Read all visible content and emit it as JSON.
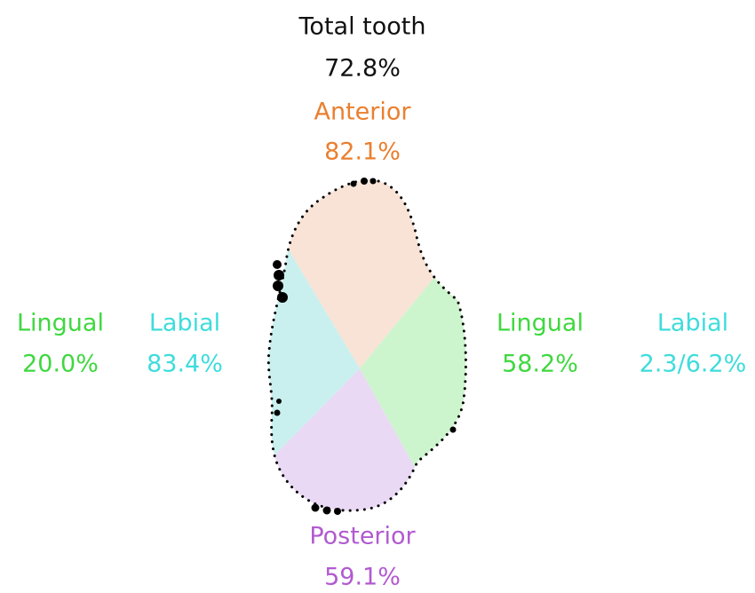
{
  "total": {
    "label": "Total tooth",
    "value": "72.8%"
  },
  "anterior": {
    "label": "Anterior",
    "value": "82.1%"
  },
  "posterior": {
    "label": "Posterior",
    "value": "59.1%"
  },
  "left": {
    "lingual": {
      "label": "Lingual",
      "value": "20.0%"
    },
    "labial": {
      "label": "Labial",
      "value": "83.4%"
    }
  },
  "right": {
    "lingual": {
      "label": "Lingual",
      "value": "58.2%"
    },
    "labial": {
      "label": "Labial",
      "value": "2.3/6.2%"
    }
  }
}
